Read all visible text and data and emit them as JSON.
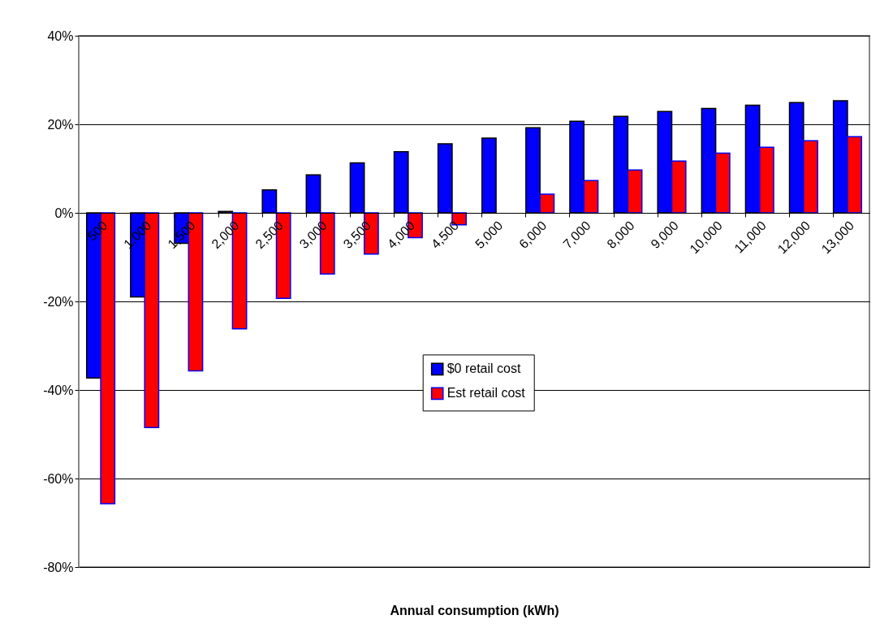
{
  "chart_data": {
    "type": "bar",
    "xlabel": "Annual consumption (kWh)",
    "categories": [
      "500",
      "1,000",
      "1,500",
      "2,000",
      "2,500",
      "3,000",
      "3,500",
      "4,000",
      "4,500",
      "5,000",
      "6,000",
      "7,000",
      "8,000",
      "9,000",
      "10,000",
      "11,000",
      "12,000",
      "13,000"
    ],
    "series": [
      {
        "name": "$0 retail cost",
        "color": "#0000ff",
        "values": [
          -37.3,
          -19.0,
          -6.9,
          0.3,
          5.2,
          8.6,
          11.3,
          13.8,
          15.6,
          16.9,
          19.2,
          20.7,
          21.8,
          22.9,
          23.6,
          24.3,
          24.9,
          25.3
        ]
      },
      {
        "name": "Est retail cost",
        "color": "#ff0000",
        "values": [
          -65.7,
          -48.5,
          -35.7,
          -26.2,
          -19.3,
          -13.8,
          -9.3,
          -5.6,
          -2.7,
          0,
          4.2,
          7.3,
          9.7,
          11.7,
          13.5,
          14.8,
          16.3,
          17.2
        ]
      }
    ],
    "ylim": [
      -80,
      40
    ],
    "yticks": [
      {
        "value": -80,
        "label": "-80%"
      },
      {
        "value": -60,
        "label": "-60%"
      },
      {
        "value": -40,
        "label": "-40%"
      },
      {
        "value": -20,
        "label": "-20%"
      },
      {
        "value": 0,
        "label": "0%"
      },
      {
        "value": 20,
        "label": "20%"
      },
      {
        "value": 40,
        "label": "40%"
      }
    ],
    "grid": "y",
    "legend": "center"
  }
}
